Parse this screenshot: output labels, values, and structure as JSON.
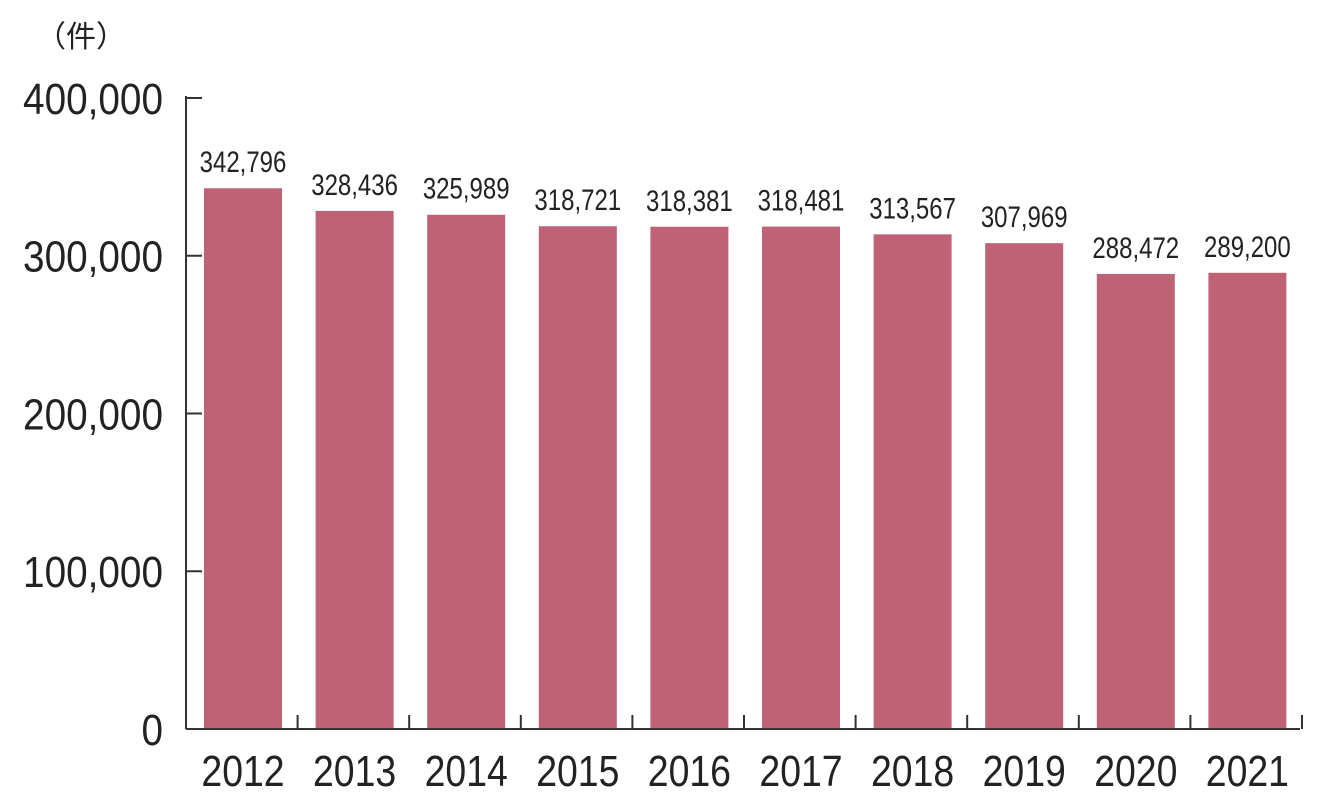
{
  "chart_data": {
    "type": "bar",
    "unit_label": "（件）",
    "categories": [
      "2012",
      "2013",
      "2014",
      "2015",
      "2016",
      "2017",
      "2018",
      "2019",
      "2020",
      "2021"
    ],
    "values": [
      342796,
      328436,
      325989,
      318721,
      318381,
      318481,
      313567,
      307969,
      288472,
      289200
    ],
    "value_labels": [
      "342,796",
      "328,436",
      "325,989",
      "318,721",
      "318,381",
      "318,481",
      "313,567",
      "307,969",
      "288,472",
      "289,200"
    ],
    "y_ticks": [
      0,
      100000,
      200000,
      300000,
      400000
    ],
    "y_tick_labels": [
      "0",
      "100,000",
      "200,000",
      "300,000",
      "400,000"
    ],
    "ylim": [
      0,
      400000
    ],
    "grid": false,
    "legend": "none",
    "colors": {
      "bar": "#c06276",
      "axis": "#333333",
      "text": "#222222"
    }
  }
}
